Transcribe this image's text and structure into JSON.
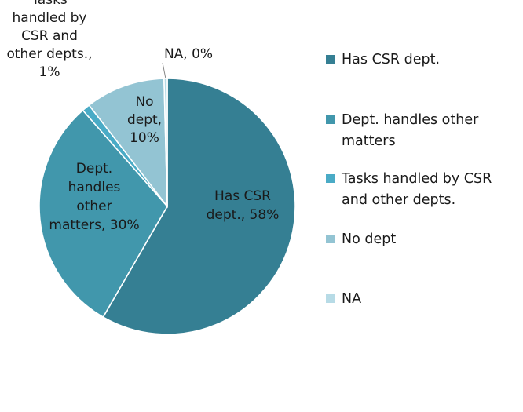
{
  "chart_data": {
    "type": "pie",
    "title": "",
    "slices": [
      {
        "name": "Has CSR dept.",
        "value": 58,
        "color": "#357f93",
        "label_lines": [
          "Has CSR",
          "dept., 58%"
        ]
      },
      {
        "name": "Dept. handles other matters",
        "value": 30,
        "color": "#4197ac",
        "label_lines": [
          "Dept.",
          "handles",
          "other",
          "matters, 30%"
        ]
      },
      {
        "name": "Tasks handled by CSR and other depts.",
        "value": 1,
        "color": "#4aabc6",
        "label_lines": [
          "Tasks",
          "handled by",
          "CSR and",
          "other depts.,",
          "1%"
        ]
      },
      {
        "name": "No dept",
        "value": 10,
        "color": "#93c4d3",
        "label_lines": [
          "No",
          "dept,",
          "10%"
        ]
      },
      {
        "name": "NA",
        "value": 0.4,
        "color": "#b7dbe6",
        "label_lines": [
          "NA, 0%"
        ]
      }
    ],
    "legend": {
      "placement": "right",
      "entries": [
        {
          "lines": [
            "Has CSR dept."
          ],
          "color": "#357f93"
        },
        {
          "lines": [
            "Dept. handles other",
            "matters"
          ],
          "color": "#4197ac"
        },
        {
          "lines": [
            "Tasks handled by CSR",
            "and other depts."
          ],
          "color": "#4aabc6"
        },
        {
          "lines": [
            "No dept"
          ],
          "color": "#93c4d3"
        },
        {
          "lines": [
            "NA"
          ],
          "color": "#b7dbe6"
        }
      ]
    }
  }
}
